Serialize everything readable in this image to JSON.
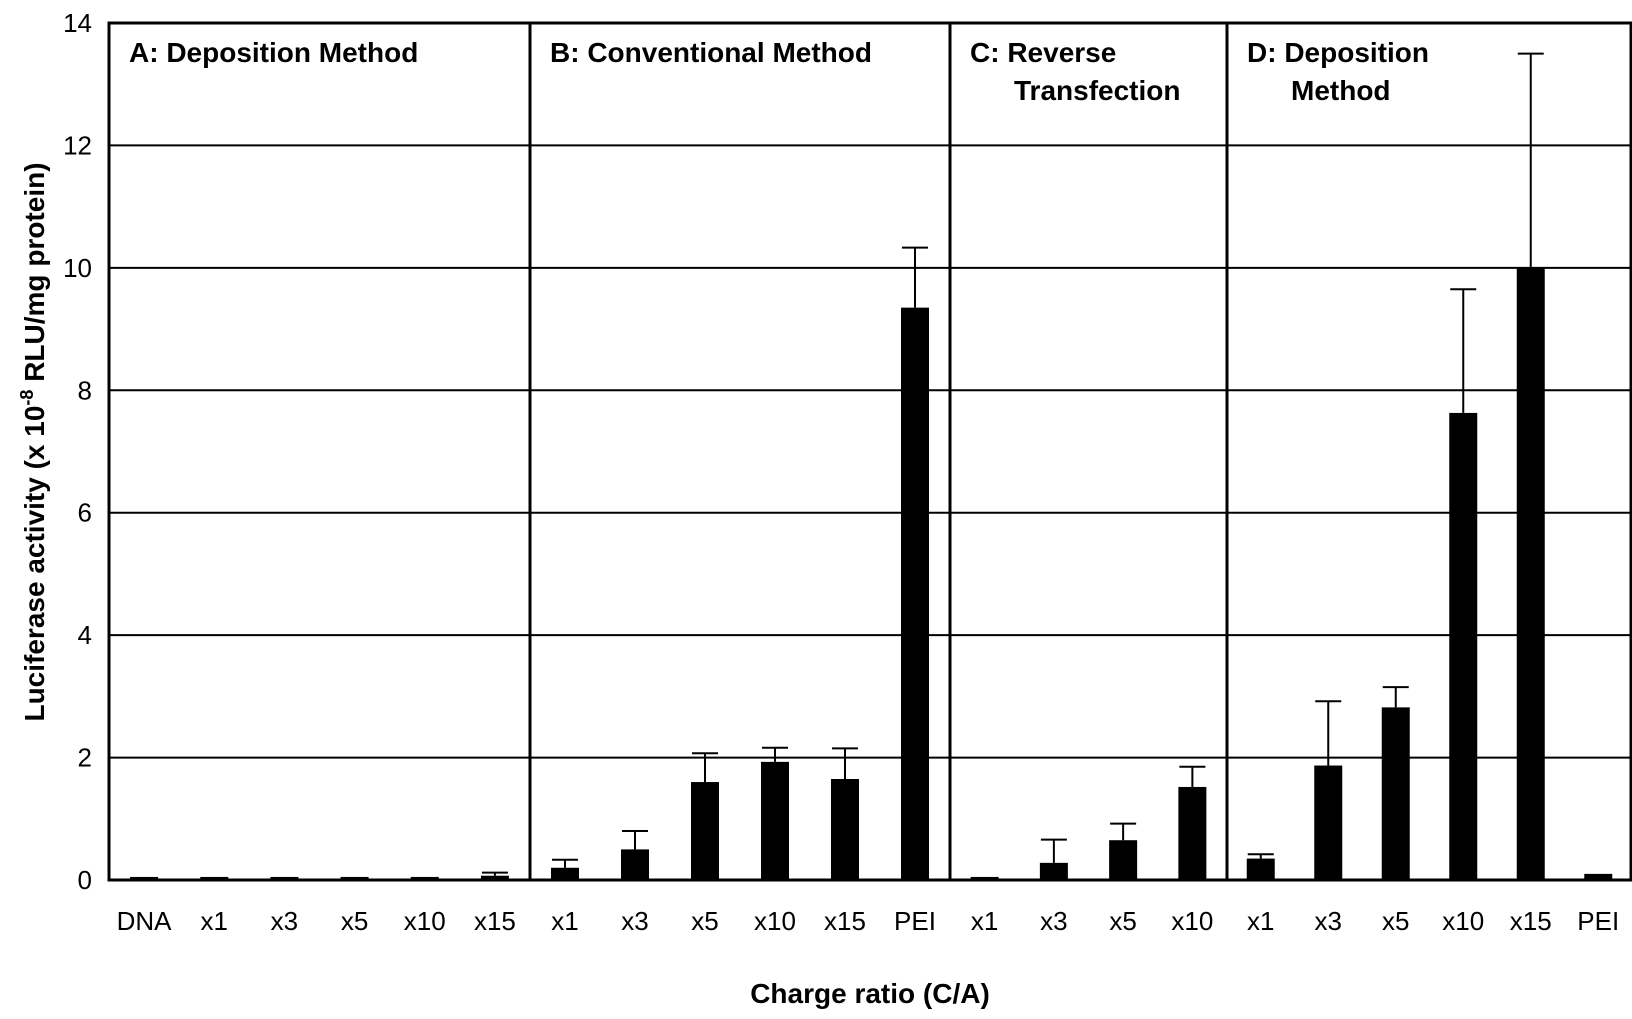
{
  "chart_data": {
    "type": "bar",
    "ylabel": "Luciferase activity (x 10",
    "ylabel_sup": "-8",
    "ylabel_tail": " RLU/mg protein)",
    "xlabel": "Charge ratio (C/A)",
    "ylim": [
      0,
      14
    ],
    "yticks": [
      "0",
      "2",
      "4",
      "6",
      "8",
      "10",
      "12",
      "14"
    ],
    "grid": true,
    "bar_color": "#000000",
    "panels": [
      {
        "title_lines": [
          "A: Deposition Method"
        ],
        "categories": [
          "DNA",
          "x1",
          "x3",
          "x5",
          "x10",
          "x15"
        ],
        "values": [
          0.05,
          0.05,
          0.05,
          0.05,
          0.05,
          0.07
        ],
        "errors": [
          0,
          0,
          0,
          0,
          0,
          0.05
        ]
      },
      {
        "title_lines": [
          "B: Conventional Method"
        ],
        "categories": [
          "x1",
          "x3",
          "x5",
          "x10",
          "x15",
          "PEI"
        ],
        "values": [
          0.2,
          0.5,
          1.6,
          1.93,
          1.65,
          9.35
        ],
        "errors": [
          0.13,
          0.3,
          0.47,
          0.23,
          0.5,
          0.98
        ]
      },
      {
        "title_lines": [
          "C: Reverse",
          "Transfection"
        ],
        "categories": [
          "x1",
          "x3",
          "x5",
          "x10"
        ],
        "values": [
          0.05,
          0.28,
          0.65,
          1.52
        ],
        "errors": [
          0,
          0.38,
          0.27,
          0.33
        ]
      },
      {
        "title_lines": [
          "D: Deposition",
          "Method"
        ],
        "categories": [
          "x1",
          "x3",
          "x5",
          "x10",
          "x15",
          "PEI"
        ],
        "values": [
          0.35,
          1.87,
          2.82,
          7.63,
          10.0,
          0.1
        ],
        "errors": [
          0.07,
          1.05,
          0.33,
          2.02,
          3.5,
          0
        ]
      }
    ]
  }
}
